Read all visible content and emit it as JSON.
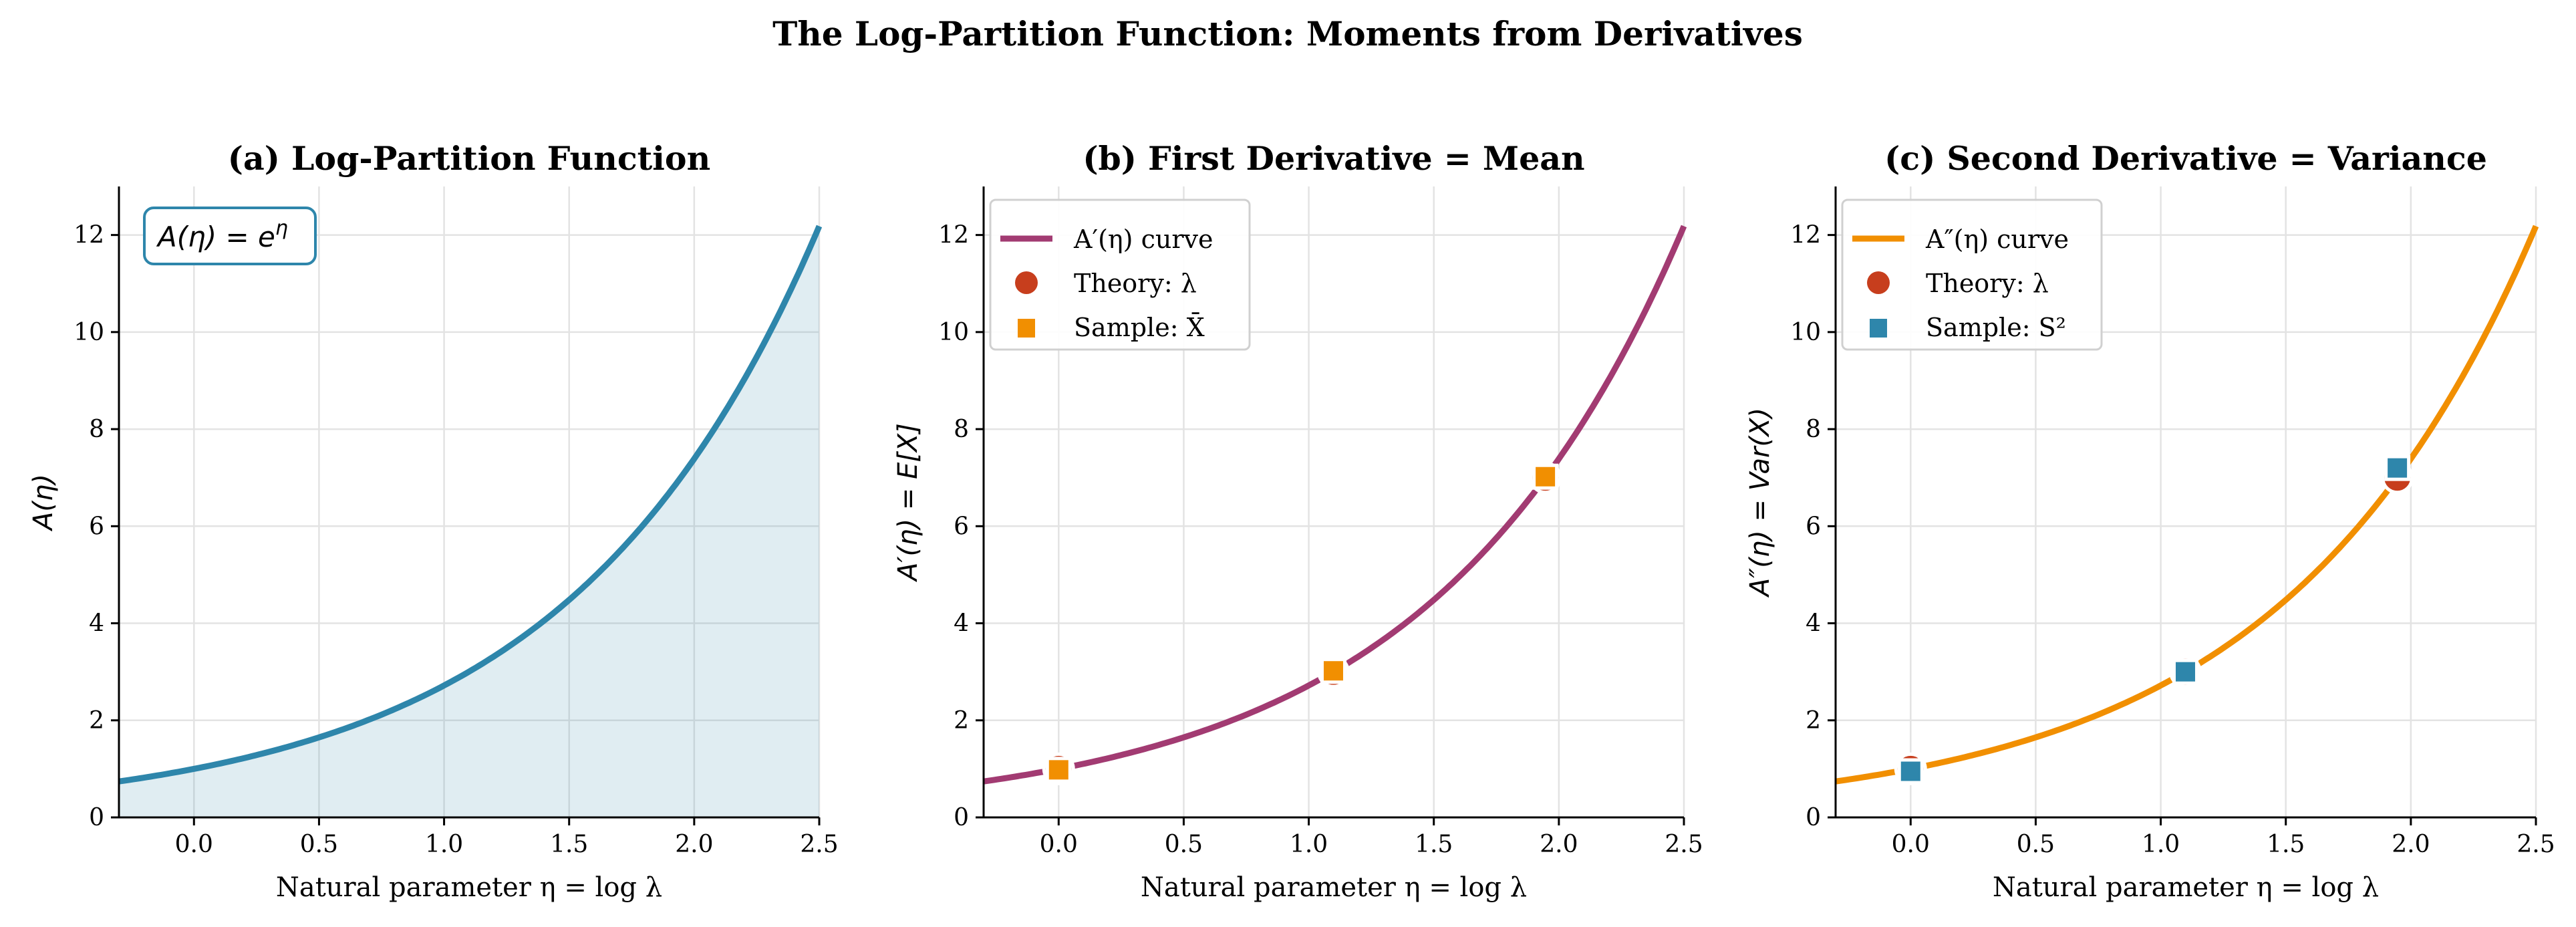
{
  "title": "The Log-Partition Function: Moments from Derivatives",
  "chart_data": [
    {
      "type": "line",
      "title": "(a) Log-Partition Function",
      "xlabel": "Natural parameter η = log λ",
      "ylabel": "A(η)",
      "xlim": [
        -0.3,
        2.5
      ],
      "ylim": [
        0,
        13
      ],
      "xticks": [
        "0.0",
        "0.5",
        "1.0",
        "1.5",
        "2.0",
        "2.5"
      ],
      "yticks": [
        "0",
        "2",
        "4",
        "6",
        "8",
        "10",
        "12"
      ],
      "grid": true,
      "curve": "exp(eta)",
      "curve_color": "#2E86AB",
      "filled": true,
      "annotation": "A(η) = eη",
      "annotation_main": "A(η) = e",
      "annotation_sup": "η",
      "legend": []
    },
    {
      "type": "line",
      "title": "(b) First Derivative = Mean",
      "xlabel": "Natural parameter η = log λ",
      "ylabel": "A′(η) = E[X]",
      "xlim": [
        -0.3,
        2.5
      ],
      "ylim": [
        0,
        13
      ],
      "xticks": [
        "0.0",
        "0.5",
        "1.0",
        "1.5",
        "2.0",
        "2.5"
      ],
      "yticks": [
        "0",
        "2",
        "4",
        "6",
        "8",
        "10",
        "12"
      ],
      "grid": true,
      "curve": "exp(eta)",
      "curve_color": "#A23B72",
      "theory_color": "#C73E1D",
      "sample_color": "#F18F01",
      "legend_position": "upper-left",
      "legend": [
        "A′(η) curve",
        "Theory: λ",
        "Sample: X̄"
      ],
      "theory_points": {
        "x": [
          0.0,
          1.0986,
          1.9459
        ],
        "y": [
          1,
          3,
          7
        ]
      },
      "sample_points": {
        "x": [
          0.0,
          1.0986,
          1.9459
        ],
        "y": [
          0.98,
          3.02,
          7.02
        ]
      }
    },
    {
      "type": "line",
      "title": "(c) Second Derivative = Variance",
      "xlabel": "Natural parameter η = log λ",
      "ylabel": "A″(η) = Var(X)",
      "xlim": [
        -0.3,
        2.5
      ],
      "ylim": [
        0,
        13
      ],
      "xticks": [
        "0.0",
        "0.5",
        "1.0",
        "1.5",
        "2.0",
        "2.5"
      ],
      "yticks": [
        "0",
        "2",
        "4",
        "6",
        "8",
        "10",
        "12"
      ],
      "grid": true,
      "curve": "exp(eta)",
      "curve_color": "#F18F01",
      "theory_color": "#C73E1D",
      "sample_color": "#2E86AB",
      "legend_position": "upper-left",
      "legend": [
        "A″(η) curve",
        "Theory: λ",
        "Sample: S²"
      ],
      "theory_points": {
        "x": [
          0.0,
          1.0986,
          1.9459
        ],
        "y": [
          1,
          3,
          7
        ]
      },
      "sample_points": {
        "x": [
          0.0,
          1.0986,
          1.9459
        ],
        "y": [
          0.95,
          3.0,
          7.2
        ]
      }
    }
  ]
}
